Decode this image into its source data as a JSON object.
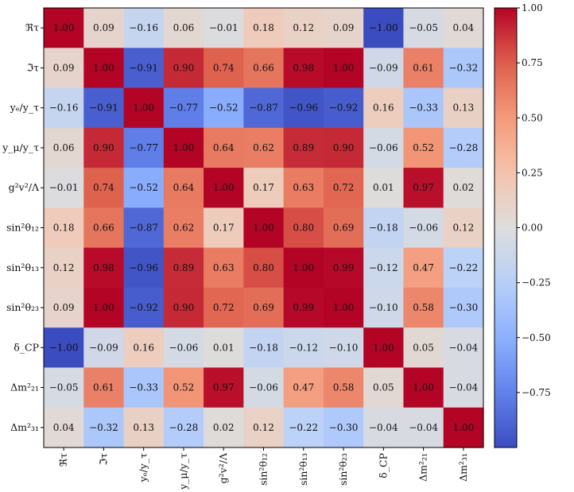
{
  "chart_data": {
    "type": "heatmap",
    "title": "",
    "xlabel": "",
    "ylabel": "",
    "colormap": "coolwarm",
    "value_format": "2-decimal",
    "labels": [
      "ℜτ",
      "ℑτ",
      "yₑ/y_τ",
      "y_μ/y_τ",
      "g²v²/Λ",
      "sin²θ₁₂",
      "sin²θ₁₃",
      "sin²θ₂₃",
      "δ_CP",
      "Δm²₂₁",
      "Δm²₃₁"
    ],
    "matrix": [
      [
        1.0,
        0.09,
        -0.16,
        0.06,
        -0.01,
        0.18,
        0.12,
        0.09,
        -1.0,
        -0.05,
        0.04
      ],
      [
        0.09,
        1.0,
        -0.91,
        0.9,
        0.74,
        0.66,
        0.98,
        1.0,
        -0.09,
        0.61,
        -0.32
      ],
      [
        -0.16,
        -0.91,
        1.0,
        -0.77,
        -0.52,
        -0.87,
        -0.96,
        -0.92,
        0.16,
        -0.33,
        0.13
      ],
      [
        0.06,
        0.9,
        -0.77,
        1.0,
        0.64,
        0.62,
        0.89,
        0.9,
        -0.06,
        0.52,
        -0.28
      ],
      [
        -0.01,
        0.74,
        -0.52,
        0.64,
        1.0,
        0.17,
        0.63,
        0.72,
        0.01,
        0.97,
        0.02
      ],
      [
        0.18,
        0.66,
        -0.87,
        0.62,
        0.17,
        1.0,
        0.8,
        0.69,
        -0.18,
        -0.06,
        0.12
      ],
      [
        0.12,
        0.98,
        -0.96,
        0.89,
        0.63,
        0.8,
        1.0,
        0.99,
        -0.12,
        0.47,
        -0.22
      ],
      [
        0.09,
        1.0,
        -0.92,
        0.9,
        0.72,
        0.69,
        0.99,
        1.0,
        -0.1,
        0.58,
        -0.3
      ],
      [
        -1.0,
        -0.09,
        0.16,
        -0.06,
        0.01,
        -0.18,
        -0.12,
        -0.1,
        1.0,
        0.05,
        -0.04
      ],
      [
        -0.05,
        0.61,
        -0.33,
        0.52,
        0.97,
        -0.06,
        0.47,
        0.58,
        0.05,
        1.0,
        -0.04
      ],
      [
        0.04,
        -0.32,
        0.13,
        -0.28,
        0.02,
        0.12,
        -0.22,
        -0.3,
        -0.04,
        -0.04,
        1.0
      ]
    ],
    "colorbar": {
      "range": [
        -1.0,
        1.0
      ],
      "ticks": [
        1.0,
        0.75,
        0.5,
        0.25,
        0.0,
        -0.25,
        -0.5,
        -0.75
      ],
      "tick_labels": [
        "1.00",
        "0.75",
        "0.50",
        "0.25",
        "0.00",
        "−0.25",
        "−0.50",
        "−0.75"
      ]
    }
  }
}
